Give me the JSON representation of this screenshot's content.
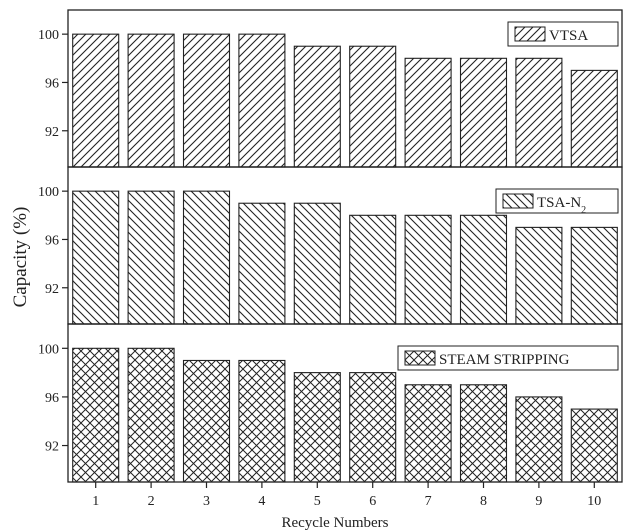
{
  "chart_data": {
    "type": "bar",
    "layout": "three vertically stacked panels sharing the x-axis",
    "xlabel": "Recycle Numbers",
    "ylabel": "Capacity (%)",
    "categories": [
      "1",
      "2",
      "3",
      "4",
      "5",
      "6",
      "7",
      "8",
      "9",
      "10"
    ],
    "ylim": [
      89,
      102
    ],
    "yticks": [
      92,
      96,
      100
    ],
    "grid": false,
    "legend_placement": "top-right (one legend per panel)",
    "panels": [
      {
        "series_name": "VTSA",
        "hatch": "diagonal-up",
        "values": [
          100,
          100,
          100,
          100,
          99,
          99,
          98,
          98,
          98,
          97
        ]
      },
      {
        "series_name": "TSA-N",
        "series_name_subscript": "2",
        "hatch": "diagonal-down",
        "values": [
          100,
          100,
          100,
          99,
          99,
          98,
          98,
          98,
          97,
          97
        ]
      },
      {
        "series_name": "STEAM STRIPPING",
        "hatch": "crosshatch",
        "values": [
          100,
          100,
          99,
          99,
          98,
          98,
          97,
          97,
          96,
          95
        ]
      }
    ]
  },
  "colors": {
    "bar_fill": "#ffffff",
    "bar_stroke": "#222222",
    "axis": "#222222",
    "background": "#ffffff"
  }
}
